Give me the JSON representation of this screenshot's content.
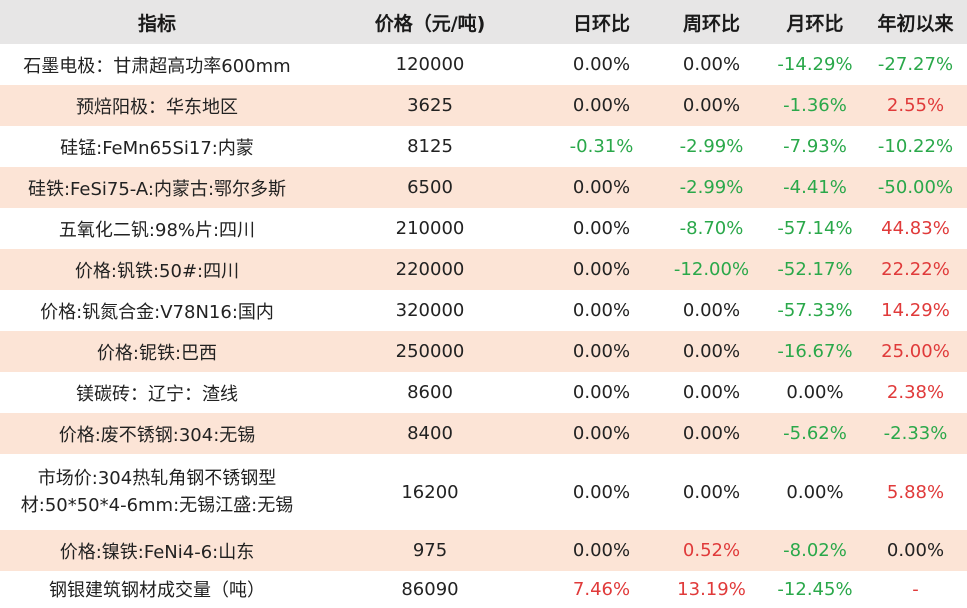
{
  "header": {
    "indicator": "指标",
    "price": "价格（元/吨)",
    "day": "日环比",
    "week": "周环比",
    "month": "月环比",
    "ytd": "年初以来"
  },
  "rows": [
    {
      "name": "石墨电极：甘肃超高功率600mm",
      "price": "120000",
      "day": "0.00%",
      "week": "0.00%",
      "month": "-14.29%",
      "ytd": "-27.27%"
    },
    {
      "name": "预焙阳极：华东地区",
      "price": "3625",
      "day": "0.00%",
      "week": "0.00%",
      "month": "-1.36%",
      "ytd": "2.55%"
    },
    {
      "name": "硅锰:FeMn65Si17:内蒙",
      "price": "8125",
      "day": "-0.31%",
      "week": "-2.99%",
      "month": "-7.93%",
      "ytd": "-10.22%"
    },
    {
      "name": "硅铁:FeSi75-A:内蒙古:鄂尔多斯",
      "price": "6500",
      "day": "0.00%",
      "week": "-2.99%",
      "month": "-4.41%",
      "ytd": "-50.00%"
    },
    {
      "name": "五氧化二钒:98%片:四川",
      "price": "210000",
      "day": "0.00%",
      "week": "-8.70%",
      "month": "-57.14%",
      "ytd": "44.83%"
    },
    {
      "name": "价格:钒铁:50#:四川",
      "price": "220000",
      "day": "0.00%",
      "week": "-12.00%",
      "month": "-52.17%",
      "ytd": "22.22%"
    },
    {
      "name": "价格:钒氮合金:V78N16:国内",
      "price": "320000",
      "day": "0.00%",
      "week": "0.00%",
      "month": "-57.33%",
      "ytd": "14.29%"
    },
    {
      "name": "价格:铌铁:巴西",
      "price": "250000",
      "day": "0.00%",
      "week": "0.00%",
      "month": "-16.67%",
      "ytd": "25.00%"
    },
    {
      "name": "镁碳砖：辽宁：渣线",
      "price": "8600",
      "day": "0.00%",
      "week": "0.00%",
      "month": "0.00%",
      "ytd": "2.38%"
    },
    {
      "name": "价格:废不锈钢:304:无锡",
      "price": "8400",
      "day": "0.00%",
      "week": "0.00%",
      "month": "-5.62%",
      "ytd": "-2.33%"
    },
    {
      "name": "市场价:304热轧角钢不锈钢型材:50*50*4-6mm:无锡江盛:无锡",
      "price": "16200",
      "day": "0.00%",
      "week": "0.00%",
      "month": "0.00%",
      "ytd": "5.88%"
    },
    {
      "name": "价格:镍铁:FeNi4-6:山东",
      "price": "975",
      "day": "0.00%",
      "week": "0.52%",
      "month": "-8.02%",
      "ytd": "0.00%"
    },
    {
      "name": "钢银建筑钢材成交量（吨）",
      "price": "86090",
      "day": "7.46%",
      "week": "13.19%",
      "month": "-12.45%",
      "ytd": "-"
    }
  ],
  "colors": {
    "header_bg": "#e7e6e6",
    "alt_row_bg": "#fce4d6",
    "negative": "#2aa84a",
    "positive": "#e03a3a"
  }
}
